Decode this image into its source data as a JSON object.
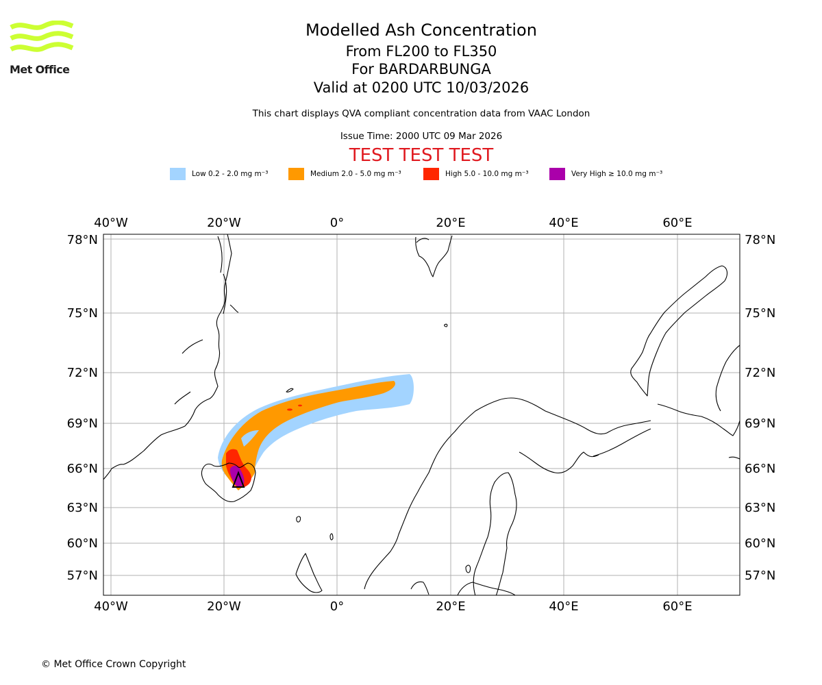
{
  "branding": {
    "logo_text": "Met Office",
    "logo_color": "#ccff33"
  },
  "header": {
    "title": "Modelled Ash Concentration",
    "flight_levels": "From FL200 to FL350",
    "volcano": "For BARDARBUNGA",
    "valid_time": "Valid at 0200 UTC 10/03/2026",
    "description": "This chart displays QVA compliant concentration data from VAAC London",
    "issue_time": "Issue Time: 2000 UTC 09 Mar 2026",
    "test_banner": "TEST TEST TEST",
    "test_color": "#e0191f"
  },
  "legend": [
    {
      "label": "Low 0.2 - 2.0 mg m⁻³",
      "color": "#a3d4ff"
    },
    {
      "label": "Medium 2.0 - 5.0 mg m⁻³",
      "color": "#ff9900"
    },
    {
      "label": "High 5.0 - 10.0 mg m⁻³",
      "color": "#ff2600"
    },
    {
      "label": "Very High  ≥  10.0 mg m⁻³",
      "color": "#aa00aa"
    }
  ],
  "map": {
    "lon_labels": [
      "40°W",
      "20°W",
      "0°",
      "20°E",
      "40°E",
      "60°E"
    ],
    "lat_labels": [
      "78°N",
      "75°N",
      "72°N",
      "69°N",
      "66°N",
      "63°N",
      "60°N",
      "57°N"
    ],
    "volcano_marker": "triangle-icon"
  },
  "footer": {
    "copyright": "© Met Office Crown Copyright"
  }
}
